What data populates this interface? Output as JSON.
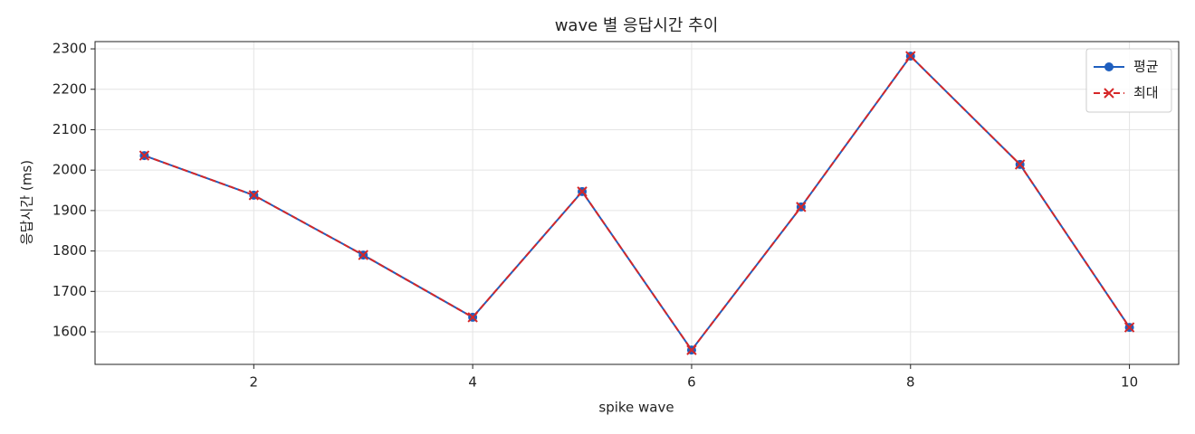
{
  "chart_data": {
    "type": "line",
    "title": "wave 별 응답시간 추이",
    "x_label": "spike wave",
    "y_label": "응답시간 (ms)",
    "x": [
      1,
      2,
      3,
      4,
      5,
      6,
      7,
      8,
      9,
      10
    ],
    "series": [
      {
        "name": "평균",
        "color": "#1f5fbf",
        "linestyle": "solid",
        "marker": "o",
        "values": [
          2036,
          1938,
          1790,
          1636,
          1947,
          1555,
          1909,
          2282,
          2014,
          1611
        ]
      },
      {
        "name": "최대",
        "color": "#d62728",
        "linestyle": "dashed",
        "marker": "x",
        "values": [
          2036,
          1938,
          1790,
          1636,
          1947,
          1555,
          1909,
          2282,
          2014,
          1611
        ]
      }
    ],
    "xlim": [
      0.55,
      10.45
    ],
    "ylim": [
      1519.5,
      2318
    ],
    "xticks": [
      2,
      4,
      6,
      8,
      10
    ],
    "yticks": [
      1600,
      1700,
      1800,
      1900,
      2000,
      2100,
      2200,
      2300
    ],
    "grid": true,
    "legend": "upper right"
  }
}
